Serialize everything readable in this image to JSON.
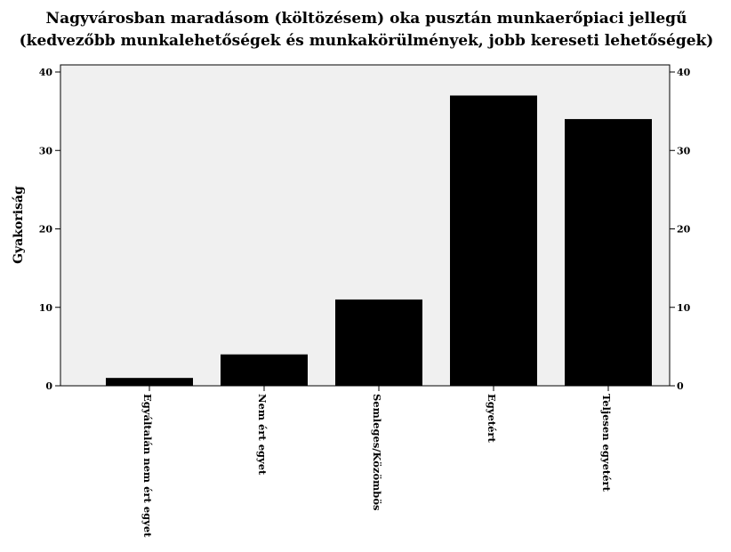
{
  "chart_data": {
    "type": "bar",
    "title": [
      "Nagyvárosban maradásom (költözésem) oka pusztán munkaerőpiaci jellegű",
      "(kedvezőbb munkalehetőségek és munkakörülmények, jobb kereseti lehetőségek)"
    ],
    "ylabel": "Gyakoriság",
    "xlabel": "",
    "categories": [
      "Egyáltalán nem ért egyet",
      "Nem ért egyet",
      "Semleges/Közömbös",
      "Egyetért",
      "Teljesen egyetért"
    ],
    "values": [
      1,
      4,
      11,
      37,
      34
    ],
    "ylim": [
      0,
      40
    ],
    "yticks": [
      0,
      10,
      20,
      30,
      40
    ],
    "right_axis": true,
    "grid": false,
    "colors": {
      "bar": "#000000",
      "plot_bg": "#f0f0f0"
    }
  }
}
